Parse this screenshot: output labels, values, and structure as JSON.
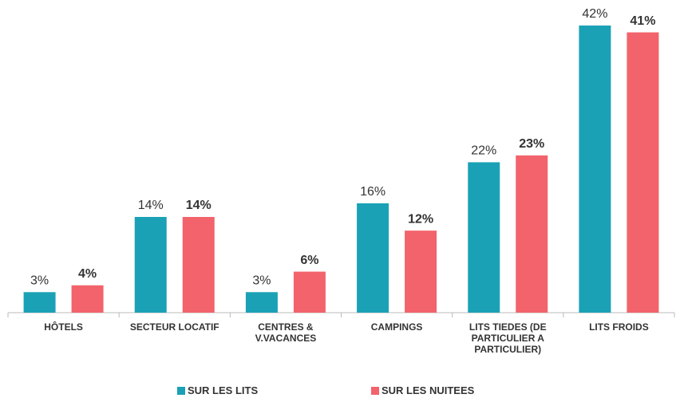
{
  "chart_data": {
    "type": "bar",
    "categories": [
      "HÔTELS",
      "SECTEUR LOCATIF",
      "CENTRES & V.VACANCES",
      "CAMPINGS",
      "LITS TIEDES (DE PARTICULIER A PARTICULIER)",
      "LITS FROIDS"
    ],
    "series": [
      {
        "name": "SUR LES LITS",
        "color": "#1ba1b6",
        "values": [
          3,
          14,
          3,
          16,
          22,
          42
        ],
        "value_labels": [
          "3%",
          "14%",
          "3%",
          "16%",
          "22%",
          "42%"
        ]
      },
      {
        "name": "SUR LES NUITEES",
        "color": "#f2636b",
        "values": [
          4,
          14,
          6,
          12,
          23,
          41
        ],
        "value_labels": [
          "4%",
          "14%",
          "6%",
          "12%",
          "23%",
          "41%"
        ]
      }
    ]
  }
}
